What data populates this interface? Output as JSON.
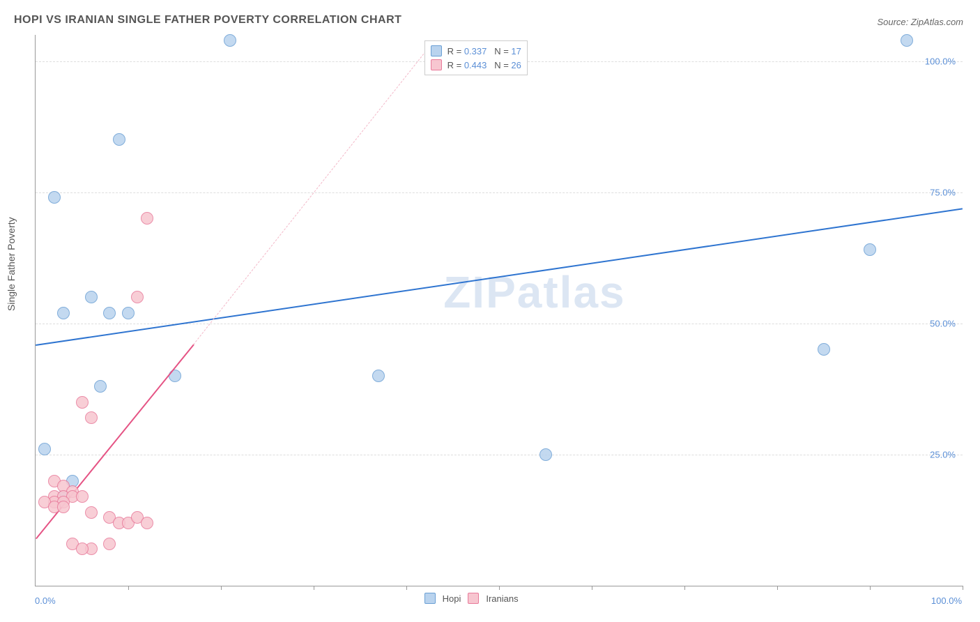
{
  "title": "HOPI VS IRANIAN SINGLE FATHER POVERTY CORRELATION CHART",
  "source_label": "Source: ZipAtlas.com",
  "watermark": "ZIPatlas",
  "chart": {
    "type": "scatter",
    "ylabel": "Single Father Poverty",
    "xlim": [
      0,
      100
    ],
    "ylim": [
      0,
      105
    ],
    "yticks": [
      25,
      50,
      75,
      100
    ],
    "ytick_labels": [
      "25.0%",
      "50.0%",
      "75.0%",
      "100.0%"
    ],
    "xtick_labels": {
      "min": "0.0%",
      "max": "100.0%"
    },
    "xtick_positions": [
      10,
      20,
      30,
      40,
      50,
      60,
      70,
      80,
      90,
      100
    ],
    "grid_color": "#dddddd",
    "axis_color": "#999999",
    "background_color": "#ffffff",
    "marker_radius": 8,
    "marker_border_width": 1.5,
    "series": [
      {
        "name": "Hopi",
        "fill": "#b9d3ee",
        "stroke": "#6a9fd4",
        "r_value": "0.337",
        "n_value": "17",
        "trend": {
          "x1": 0,
          "y1": 46,
          "x2": 100,
          "y2": 72,
          "color": "#2e74d0",
          "width": 2,
          "dash": false
        },
        "points": [
          {
            "x": 21,
            "y": 104
          },
          {
            "x": 94,
            "y": 104
          },
          {
            "x": 9,
            "y": 85
          },
          {
            "x": 2,
            "y": 74
          },
          {
            "x": 90,
            "y": 64
          },
          {
            "x": 6,
            "y": 55
          },
          {
            "x": 3,
            "y": 52
          },
          {
            "x": 8,
            "y": 52
          },
          {
            "x": 10,
            "y": 52
          },
          {
            "x": 85,
            "y": 45
          },
          {
            "x": 15,
            "y": 40
          },
          {
            "x": 7,
            "y": 38
          },
          {
            "x": 37,
            "y": 40
          },
          {
            "x": 1,
            "y": 26
          },
          {
            "x": 55,
            "y": 25
          },
          {
            "x": 4,
            "y": 20
          },
          {
            "x": 3,
            "y": 17
          }
        ]
      },
      {
        "name": "Iranians",
        "fill": "#f7c6d0",
        "stroke": "#e87a9a",
        "r_value": "0.443",
        "n_value": "26",
        "trend": {
          "x1": 0,
          "y1": 9,
          "x2": 17,
          "y2": 46,
          "color": "#e55384",
          "width": 2,
          "dash": false
        },
        "trend_dashed": {
          "x1": 17,
          "y1": 46,
          "x2": 43,
          "y2": 104,
          "color": "#f3b8c8",
          "width": 1,
          "dash": true
        },
        "points": [
          {
            "x": 12,
            "y": 70
          },
          {
            "x": 11,
            "y": 55
          },
          {
            "x": 5,
            "y": 35
          },
          {
            "x": 6,
            "y": 32
          },
          {
            "x": 2,
            "y": 20
          },
          {
            "x": 3,
            "y": 19
          },
          {
            "x": 4,
            "y": 18
          },
          {
            "x": 2,
            "y": 17
          },
          {
            "x": 3,
            "y": 17
          },
          {
            "x": 4,
            "y": 17
          },
          {
            "x": 5,
            "y": 17
          },
          {
            "x": 2,
            "y": 16
          },
          {
            "x": 3,
            "y": 16
          },
          {
            "x": 1,
            "y": 16
          },
          {
            "x": 2,
            "y": 15
          },
          {
            "x": 3,
            "y": 15
          },
          {
            "x": 6,
            "y": 14
          },
          {
            "x": 8,
            "y": 13
          },
          {
            "x": 9,
            "y": 12
          },
          {
            "x": 10,
            "y": 12
          },
          {
            "x": 11,
            "y": 13
          },
          {
            "x": 12,
            "y": 12
          },
          {
            "x": 4,
            "y": 8
          },
          {
            "x": 6,
            "y": 7
          },
          {
            "x": 5,
            "y": 7
          },
          {
            "x": 8,
            "y": 8
          }
        ]
      }
    ]
  },
  "legend_bottom": [
    "Hopi",
    "Iranians"
  ]
}
